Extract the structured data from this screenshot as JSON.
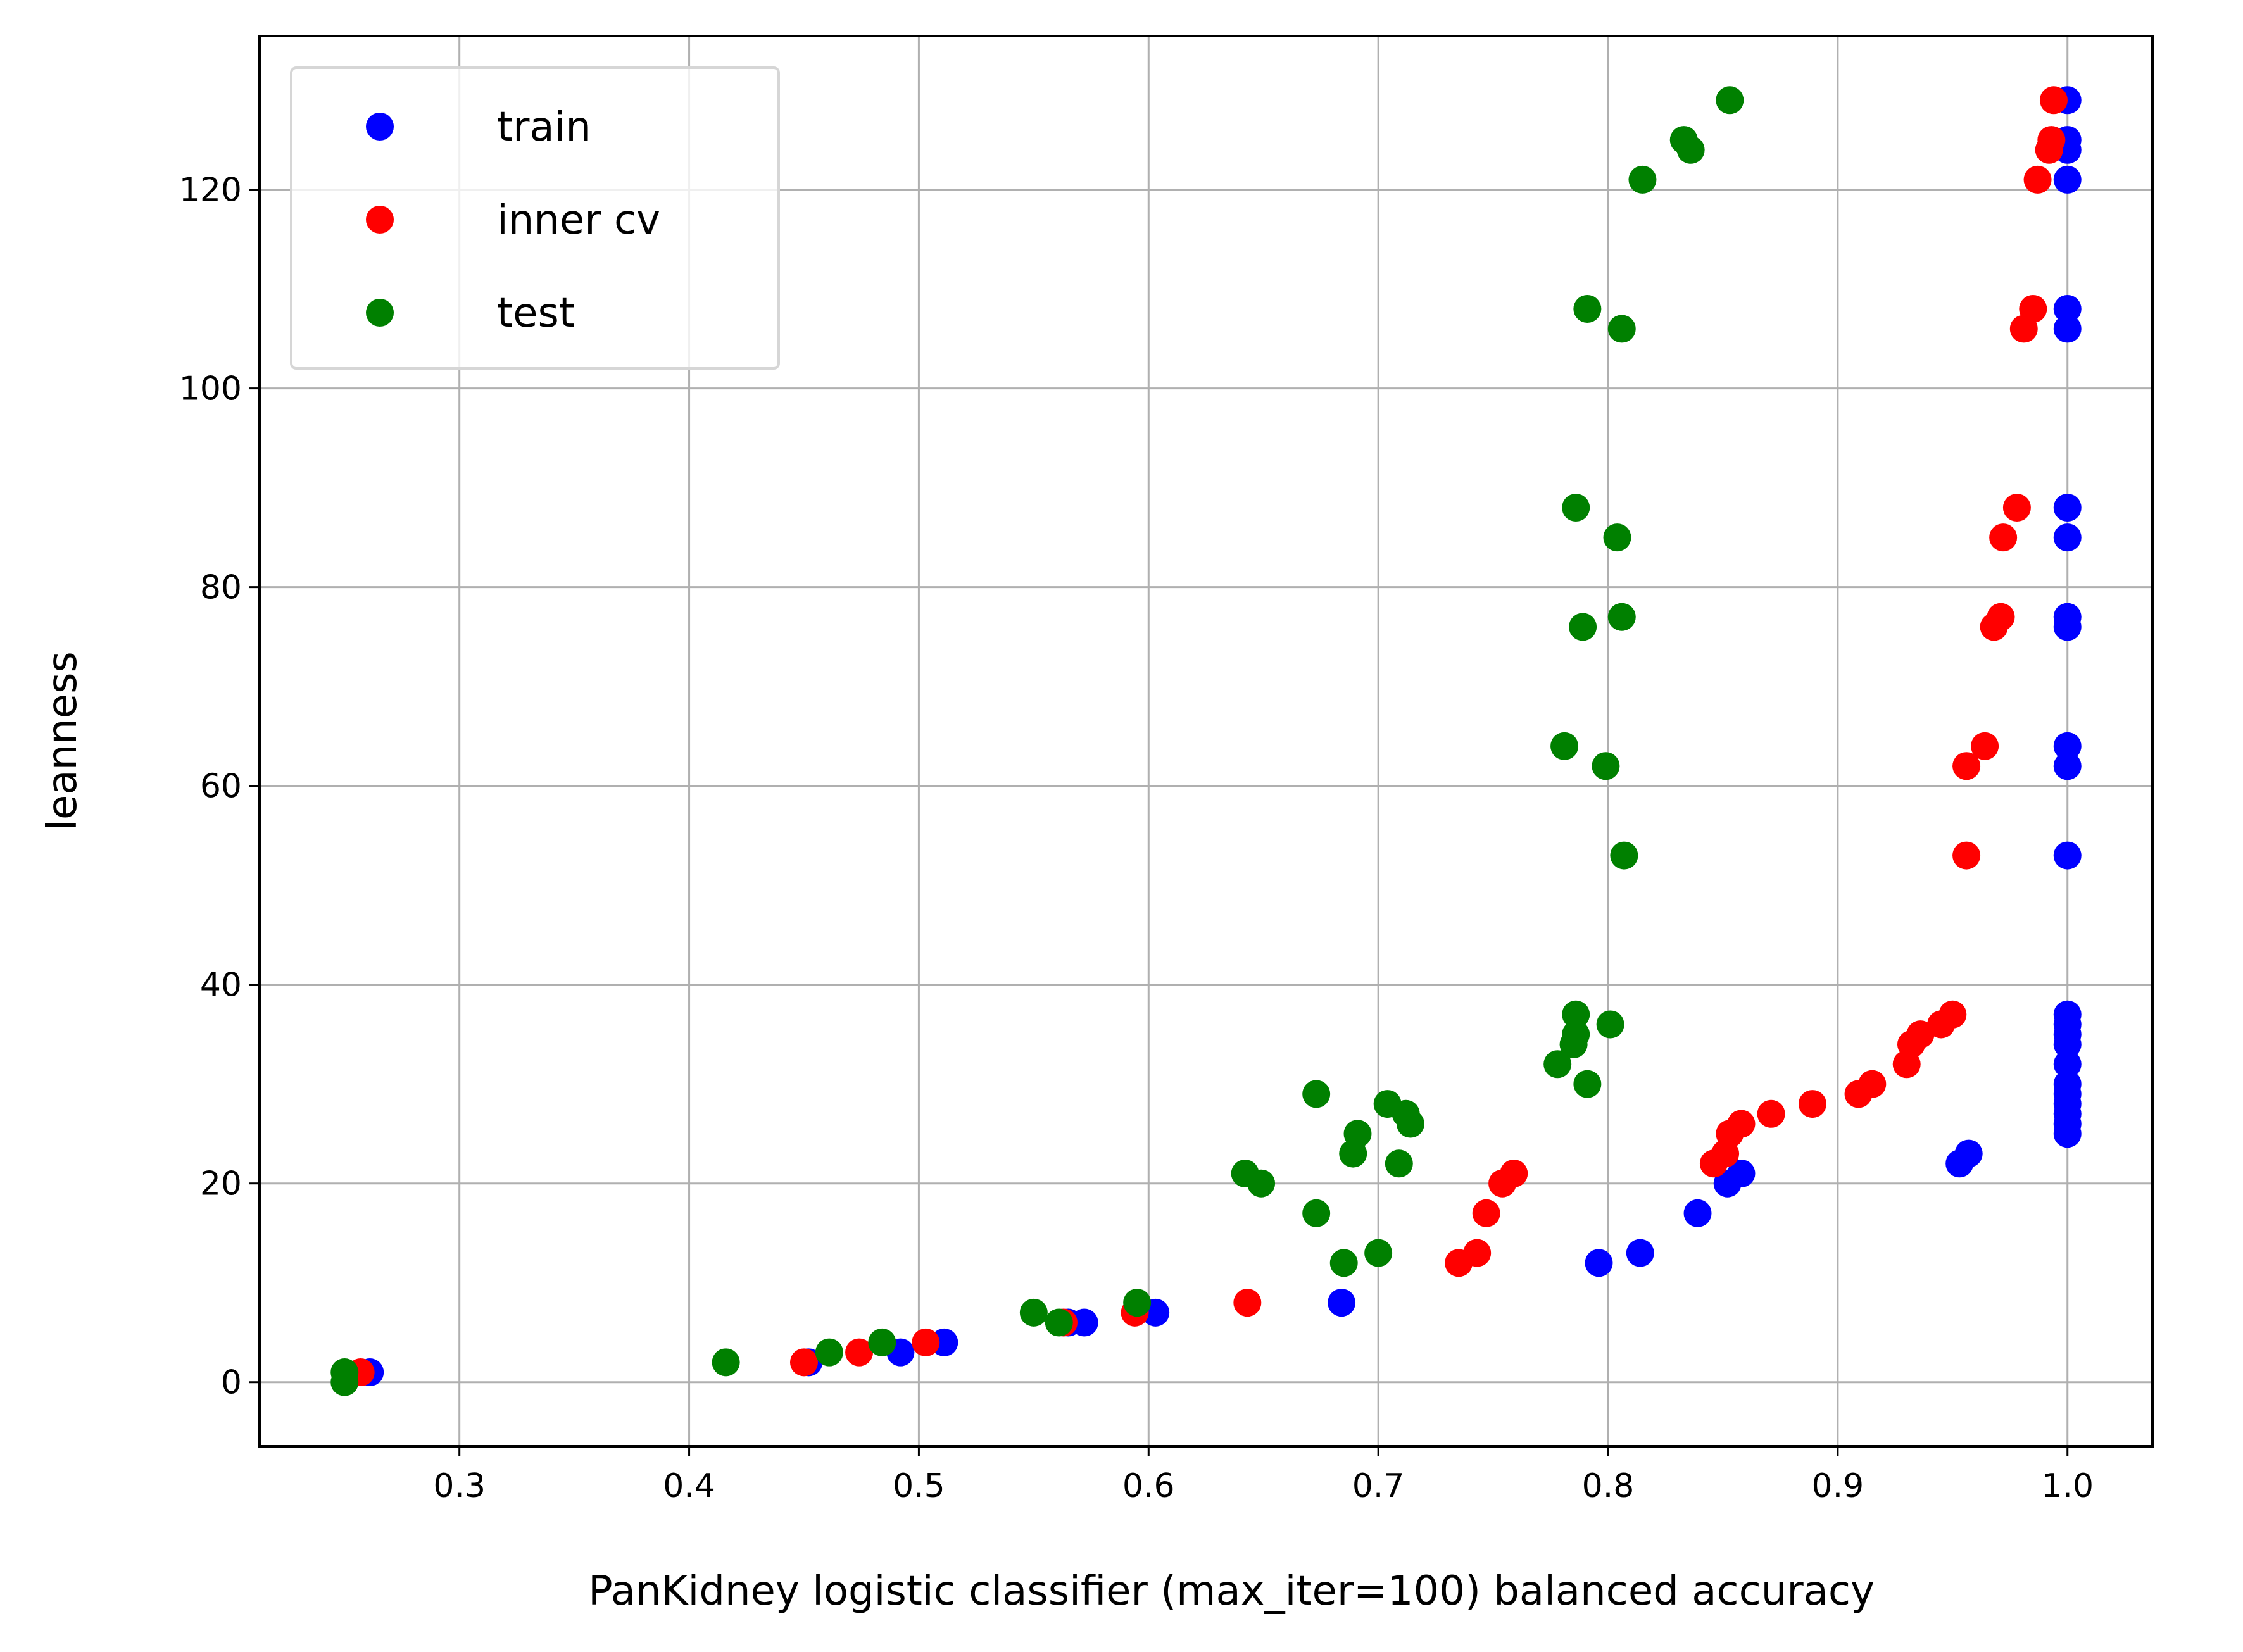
{
  "chart_data": {
    "type": "scatter",
    "title": "",
    "xlabel": "PanKidney logistic classifier (max_iter=100) balanced accuracy",
    "ylabel": "leanness",
    "xlim": [
      0.213,
      1.037
    ],
    "ylim": [
      -6.45,
      135.45
    ],
    "xticks": [
      0.3,
      0.4,
      0.5,
      0.6,
      0.7,
      0.8,
      0.9,
      1.0
    ],
    "xtick_labels": [
      "0.3",
      "0.4",
      "0.5",
      "0.6",
      "0.7",
      "0.8",
      "0.9",
      "1.0"
    ],
    "yticks": [
      0,
      20,
      40,
      60,
      80,
      100,
      120
    ],
    "ytick_labels": [
      "0",
      "20",
      "40",
      "60",
      "80",
      "100",
      "120"
    ],
    "grid": true,
    "legend_position": "upper-left",
    "series": [
      {
        "name": "train",
        "color": "#0000ff",
        "points": [
          [
            0.261,
            1
          ],
          [
            0.452,
            2
          ],
          [
            0.492,
            3
          ],
          [
            0.511,
            4
          ],
          [
            0.565,
            6
          ],
          [
            0.572,
            6
          ],
          [
            0.603,
            7
          ],
          [
            0.684,
            8
          ],
          [
            0.796,
            12
          ],
          [
            0.814,
            13
          ],
          [
            0.839,
            17
          ],
          [
            0.852,
            20
          ],
          [
            0.858,
            21
          ],
          [
            0.953,
            22
          ],
          [
            0.957,
            23
          ],
          [
            1.0,
            25
          ],
          [
            1.0,
            26
          ],
          [
            1.0,
            27
          ],
          [
            1.0,
            28
          ],
          [
            1.0,
            29
          ],
          [
            1.0,
            30
          ],
          [
            1.0,
            32
          ],
          [
            1.0,
            34
          ],
          [
            1.0,
            35
          ],
          [
            1.0,
            36
          ],
          [
            1.0,
            37
          ],
          [
            1.0,
            53
          ],
          [
            1.0,
            62
          ],
          [
            1.0,
            64
          ],
          [
            1.0,
            76
          ],
          [
            1.0,
            77
          ],
          [
            1.0,
            85
          ],
          [
            1.0,
            88
          ],
          [
            1.0,
            106
          ],
          [
            1.0,
            108
          ],
          [
            1.0,
            121
          ],
          [
            1.0,
            124
          ],
          [
            1.0,
            125
          ],
          [
            1.0,
            129
          ]
        ]
      },
      {
        "name": "inner cv",
        "color": "#ff0000",
        "points": [
          [
            0.257,
            1
          ],
          [
            0.45,
            2
          ],
          [
            0.474,
            3
          ],
          [
            0.503,
            4
          ],
          [
            0.563,
            6
          ],
          [
            0.594,
            7
          ],
          [
            0.643,
            8
          ],
          [
            0.735,
            12
          ],
          [
            0.743,
            13
          ],
          [
            0.747,
            17
          ],
          [
            0.754,
            20
          ],
          [
            0.759,
            21
          ],
          [
            0.846,
            22
          ],
          [
            0.851,
            23
          ],
          [
            0.853,
            25
          ],
          [
            0.858,
            26
          ],
          [
            0.871,
            27
          ],
          [
            0.889,
            28
          ],
          [
            0.909,
            29
          ],
          [
            0.915,
            30
          ],
          [
            0.93,
            32
          ],
          [
            0.932,
            34
          ],
          [
            0.936,
            35
          ],
          [
            0.945,
            36
          ],
          [
            0.95,
            37
          ],
          [
            0.956,
            53
          ],
          [
            0.956,
            62
          ],
          [
            0.964,
            64
          ],
          [
            0.968,
            76
          ],
          [
            0.971,
            77
          ],
          [
            0.972,
            85
          ],
          [
            0.978,
            88
          ],
          [
            0.981,
            106
          ],
          [
            0.985,
            108
          ],
          [
            0.987,
            121
          ],
          [
            0.992,
            124
          ],
          [
            0.993,
            125
          ],
          [
            0.994,
            129
          ]
        ]
      },
      {
        "name": "test",
        "color": "#008000",
        "points": [
          [
            0.25,
            0
          ],
          [
            0.25,
            1
          ],
          [
            0.416,
            2
          ],
          [
            0.461,
            3
          ],
          [
            0.484,
            4
          ],
          [
            0.55,
            7
          ],
          [
            0.561,
            6
          ],
          [
            0.595,
            8
          ],
          [
            0.642,
            21
          ],
          [
            0.649,
            20
          ],
          [
            0.673,
            29
          ],
          [
            0.673,
            17
          ],
          [
            0.685,
            12
          ],
          [
            0.689,
            23
          ],
          [
            0.691,
            25
          ],
          [
            0.7,
            13
          ],
          [
            0.704,
            28
          ],
          [
            0.709,
            22
          ],
          [
            0.712,
            27
          ],
          [
            0.714,
            26
          ],
          [
            0.778,
            32
          ],
          [
            0.781,
            64
          ],
          [
            0.785,
            34
          ],
          [
            0.786,
            35
          ],
          [
            0.786,
            37
          ],
          [
            0.786,
            88
          ],
          [
            0.789,
            76
          ],
          [
            0.791,
            30
          ],
          [
            0.791,
            108
          ],
          [
            0.799,
            62
          ],
          [
            0.801,
            36
          ],
          [
            0.804,
            85
          ],
          [
            0.806,
            77
          ],
          [
            0.806,
            106
          ],
          [
            0.807,
            53
          ],
          [
            0.815,
            121
          ],
          [
            0.833,
            125
          ],
          [
            0.836,
            124
          ],
          [
            0.853,
            129
          ]
        ]
      }
    ]
  }
}
